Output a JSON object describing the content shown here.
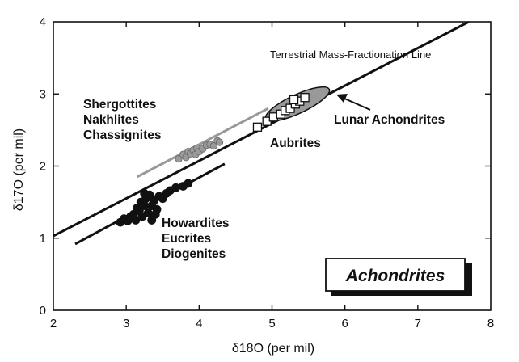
{
  "chart_data": {
    "type": "scatter",
    "title": "",
    "xlabel": "δ18O (per mil)",
    "ylabel": "δ17O (per mil)",
    "xlim": [
      2,
      8
    ],
    "ylim": [
      0,
      4
    ],
    "xticks": [
      "2",
      "3",
      "4",
      "5",
      "6",
      "7",
      "8"
    ],
    "yticks": [
      "0",
      "1",
      "2",
      "3",
      "4"
    ],
    "grid": false,
    "legend": "none",
    "box_label": "Achondrites",
    "lines": [
      {
        "name": "Terrestrial Mass-Fractionation Line",
        "x": [
          2.0,
          7.7
        ],
        "y": [
          1.03,
          4.0
        ],
        "color": "#111111",
        "width": 3
      },
      {
        "name": "",
        "x": [
          2.3,
          4.35
        ],
        "y": [
          0.92,
          2.03
        ],
        "color": "#111111",
        "width": 3
      },
      {
        "name": "",
        "x": [
          3.15,
          4.95
        ],
        "y": [
          1.85,
          2.8
        ],
        "color": "#999999",
        "width": 3
      }
    ],
    "series": [
      {
        "name": "Shergottites Nakhlites Chassignites",
        "label_lines": [
          "Shergottites",
          "Nakhlites",
          "Chassignites"
        ],
        "marker": "circle-gray",
        "x": [
          3.72,
          3.78,
          3.82,
          3.85,
          3.88,
          3.92,
          3.95,
          3.97,
          4.0,
          4.05,
          4.1,
          4.15,
          4.2,
          4.25,
          4.28
        ],
        "y": [
          2.1,
          2.16,
          2.12,
          2.2,
          2.17,
          2.22,
          2.16,
          2.25,
          2.2,
          2.24,
          2.29,
          2.3,
          2.28,
          2.35,
          2.33
        ]
      },
      {
        "name": "Howardites Eucrites Diogenites",
        "label_lines": [
          "Howardites",
          "Eucrites",
          "Diogenites"
        ],
        "marker": "circle-black",
        "x": [
          2.92,
          2.97,
          3.02,
          3.06,
          3.1,
          3.13,
          3.15,
          3.18,
          3.2,
          3.22,
          3.25,
          3.27,
          3.3,
          3.32,
          3.35,
          3.38,
          3.42,
          3.45,
          3.5,
          3.55,
          3.6,
          3.68,
          3.78,
          3.85,
          3.25,
          3.35,
          3.4
        ],
        "y": [
          1.22,
          1.27,
          1.24,
          1.3,
          1.33,
          1.25,
          1.42,
          1.38,
          1.5,
          1.3,
          1.45,
          1.55,
          1.35,
          1.6,
          1.45,
          1.52,
          1.4,
          1.58,
          1.55,
          1.62,
          1.66,
          1.7,
          1.72,
          1.76,
          1.62,
          1.25,
          1.33
        ]
      },
      {
        "name": "Aubrites",
        "label_lines": [
          "Aubrites"
        ],
        "marker": "square-white",
        "x": [
          4.8,
          4.93,
          5.02,
          5.12,
          5.18,
          5.25,
          5.32,
          5.38,
          5.45,
          5.3
        ],
        "y": [
          2.54,
          2.62,
          2.68,
          2.72,
          2.77,
          2.8,
          2.86,
          2.9,
          2.95,
          2.92
        ]
      }
    ],
    "regions": [
      {
        "name": "Lunar Achondrites",
        "label_lines": [
          "Lunar Achondrites"
        ],
        "cx": 5.35,
        "cy": 2.86,
        "rx": 0.48,
        "ry": 0.13,
        "rotate_deg": -25,
        "fill": "#999999"
      }
    ]
  }
}
